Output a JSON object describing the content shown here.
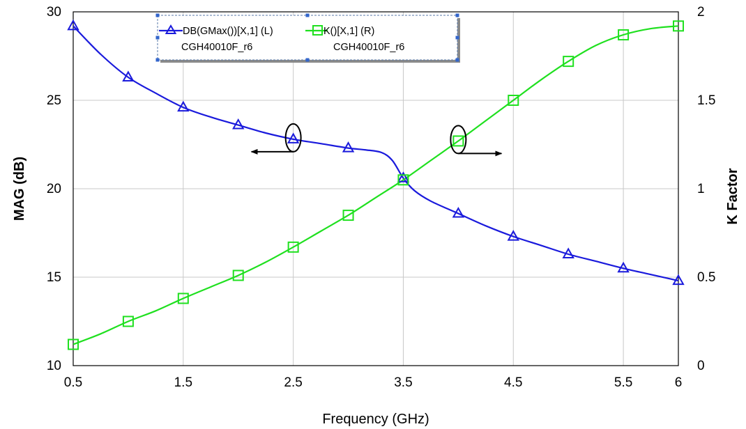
{
  "chart_data": {
    "type": "line",
    "xlabel": "Frequency (GHz)",
    "ylabel_left": "MAG (dB)",
    "ylabel_right": "K Factor",
    "xlim": [
      0.5,
      6
    ],
    "ylim_left": [
      10,
      30
    ],
    "ylim_right": [
      0,
      2
    ],
    "x_ticks": [
      "0.5",
      "1.5",
      "2.5",
      "3.5",
      "4.5",
      "5.5",
      "6"
    ],
    "y_left_ticks": [
      "10",
      "15",
      "20",
      "25",
      "30"
    ],
    "y_right_ticks": [
      "0",
      "0.5",
      "1",
      "1.5",
      "2"
    ],
    "grid": true,
    "legend_position": "top-center",
    "series": [
      {
        "name": "DB(GMax())[X,1] (L)",
        "subname": "CGH40010F_r6",
        "axis": "left",
        "color": "#1a1adc",
        "marker": "triangle",
        "x": [
          0.5,
          1.0,
          1.5,
          2.0,
          2.5,
          3.0,
          3.5,
          4.0,
          4.5,
          5.0,
          5.5,
          6.0
        ],
        "y": [
          29.2,
          26.3,
          24.6,
          23.6,
          22.8,
          22.3,
          20.6,
          18.6,
          17.3,
          16.3,
          15.5,
          14.8
        ],
        "curve": [
          [
            0.5,
            29.2
          ],
          [
            0.75,
            27.6
          ],
          [
            1.0,
            26.3
          ],
          [
            1.25,
            25.4
          ],
          [
            1.5,
            24.6
          ],
          [
            1.75,
            24.05
          ],
          [
            2.0,
            23.6
          ],
          [
            2.25,
            23.15
          ],
          [
            2.5,
            22.8
          ],
          [
            2.75,
            22.55
          ],
          [
            3.0,
            22.3
          ],
          [
            3.15,
            22.2
          ],
          [
            3.3,
            22.05
          ],
          [
            3.4,
            21.6
          ],
          [
            3.5,
            20.6
          ],
          [
            3.6,
            19.9
          ],
          [
            3.75,
            19.3
          ],
          [
            4.0,
            18.6
          ],
          [
            4.25,
            17.9
          ],
          [
            4.5,
            17.3
          ],
          [
            4.75,
            16.8
          ],
          [
            5.0,
            16.3
          ],
          [
            5.25,
            15.9
          ],
          [
            5.5,
            15.5
          ],
          [
            5.75,
            15.15
          ],
          [
            6.0,
            14.8
          ]
        ]
      },
      {
        "name": "K()[X,1] (R)",
        "subname": "CGH40010F_r6",
        "axis": "right",
        "color": "#1fe01f",
        "marker": "square",
        "x": [
          0.5,
          1.0,
          1.5,
          2.0,
          2.5,
          3.0,
          3.5,
          4.0,
          4.5,
          5.0,
          5.5,
          6.0
        ],
        "y": [
          0.12,
          0.25,
          0.38,
          0.51,
          0.67,
          0.85,
          1.05,
          1.27,
          1.5,
          1.72,
          1.87,
          1.92
        ],
        "curve": [
          [
            0.5,
            0.12
          ],
          [
            0.75,
            0.18
          ],
          [
            1.0,
            0.25
          ],
          [
            1.25,
            0.31
          ],
          [
            1.5,
            0.38
          ],
          [
            1.75,
            0.445
          ],
          [
            2.0,
            0.51
          ],
          [
            2.25,
            0.585
          ],
          [
            2.5,
            0.67
          ],
          [
            2.75,
            0.76
          ],
          [
            3.0,
            0.85
          ],
          [
            3.25,
            0.95
          ],
          [
            3.5,
            1.05
          ],
          [
            3.75,
            1.16
          ],
          [
            4.0,
            1.27
          ],
          [
            4.25,
            1.385
          ],
          [
            4.5,
            1.5
          ],
          [
            4.75,
            1.615
          ],
          [
            5.0,
            1.72
          ],
          [
            5.25,
            1.81
          ],
          [
            5.5,
            1.87
          ],
          [
            5.75,
            1.905
          ],
          [
            6.0,
            1.92
          ]
        ]
      }
    ],
    "annotations": [
      {
        "type": "ellipse-arrow",
        "at_x": 2.5,
        "at_y_left": 22.8,
        "arrow": "left"
      },
      {
        "type": "ellipse-arrow",
        "at_x": 4.0,
        "at_y_right": 1.27,
        "arrow": "right"
      }
    ]
  }
}
